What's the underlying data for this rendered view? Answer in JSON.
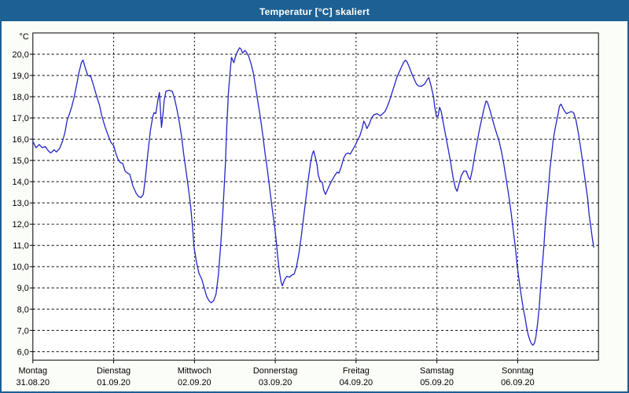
{
  "window": {
    "title": "Temperatur [°C] skaliert",
    "colors": {
      "titlebar_bg": "#1D6094",
      "titlebar_text": "#FFFFFF",
      "window_border": "#1D6094",
      "page_bg": "#FBFDF8",
      "plot_bg": "#FFFFFF",
      "grid": "#000000",
      "frame": "#000000",
      "line": "#2424C8",
      "label_text": "#000000"
    }
  },
  "chart_data": {
    "type": "line",
    "title": "Temperatur [°C] skaliert",
    "ylabel": "°C",
    "ylim": [
      5.6,
      21.0
    ],
    "grid": true,
    "legend_position": "none",
    "y_ticks": [
      {
        "value": 20,
        "label": "20,0"
      },
      {
        "value": 19,
        "label": "19,0"
      },
      {
        "value": 18,
        "label": "18,0"
      },
      {
        "value": 17,
        "label": "17,0"
      },
      {
        "value": 16,
        "label": "16,0"
      },
      {
        "value": 15,
        "label": "15,0"
      },
      {
        "value": 14,
        "label": "14,0"
      },
      {
        "value": 13,
        "label": "13,0"
      },
      {
        "value": 12,
        "label": "12,0"
      },
      {
        "value": 11,
        "label": "11,0"
      },
      {
        "value": 10,
        "label": "10,0"
      },
      {
        "value": 9,
        "label": "9,0"
      },
      {
        "value": 8,
        "label": "8,0"
      },
      {
        "value": 7,
        "label": "7,0"
      },
      {
        "value": 6,
        "label": "6,0"
      }
    ],
    "x_hours_range": [
      0,
      168
    ],
    "x_days": [
      {
        "label": "Montag",
        "date": "31.08.20"
      },
      {
        "label": "Dienstag",
        "date": "01.09.20"
      },
      {
        "label": "Mittwoch",
        "date": "02.09.20"
      },
      {
        "label": "Donnerstag",
        "date": "03.09.20"
      },
      {
        "label": "Freitag",
        "date": "04.09.20"
      },
      {
        "label": "Samstag",
        "date": "05.09.20"
      },
      {
        "label": "Sonntag",
        "date": "06.09.20"
      }
    ],
    "series": [
      {
        "name": "Temperatur [°C]",
        "unit": "°C",
        "points_hours_temp": [
          [
            0,
            15.9
          ],
          [
            0.9,
            15.6
          ],
          [
            1.9,
            15.75
          ],
          [
            2.8,
            15.6
          ],
          [
            3.7,
            15.65
          ],
          [
            4.6,
            15.45
          ],
          [
            5.3,
            15.35
          ],
          [
            6.3,
            15.5
          ],
          [
            7,
            15.4
          ],
          [
            7.9,
            15.55
          ],
          [
            8.8,
            15.9
          ],
          [
            9.5,
            16.3
          ],
          [
            10.2,
            16.9
          ],
          [
            10.9,
            17.2
          ],
          [
            11.6,
            17.55
          ],
          [
            12.3,
            18
          ],
          [
            13,
            18.55
          ],
          [
            13.7,
            19.15
          ],
          [
            14.4,
            19.6
          ],
          [
            14.9,
            19.73
          ],
          [
            15.6,
            19.35
          ],
          [
            16.3,
            19
          ],
          [
            17.2,
            18.95
          ],
          [
            17.9,
            18.6
          ],
          [
            18.8,
            18.1
          ],
          [
            19.8,
            17.6
          ],
          [
            20.4,
            17.15
          ],
          [
            21.4,
            16.6
          ],
          [
            22.3,
            16.2
          ],
          [
            23.2,
            15.85
          ],
          [
            24,
            15.7
          ],
          [
            24.6,
            15.35
          ],
          [
            25.3,
            15.05
          ],
          [
            26,
            14.9
          ],
          [
            26.7,
            14.85
          ],
          [
            27.4,
            14.5
          ],
          [
            28.1,
            14.4
          ],
          [
            28.8,
            14.35
          ],
          [
            29.7,
            13.8
          ],
          [
            30.7,
            13.45
          ],
          [
            31.4,
            13.3
          ],
          [
            32.1,
            13.25
          ],
          [
            32.8,
            13.4
          ],
          [
            33.5,
            14.3
          ],
          [
            34.2,
            15.4
          ],
          [
            34.9,
            16.4
          ],
          [
            35.6,
            17.05
          ],
          [
            36,
            17.25
          ],
          [
            36.5,
            17.2
          ],
          [
            37.2,
            17.9
          ],
          [
            37.6,
            18.2
          ],
          [
            38.2,
            16.55
          ],
          [
            38.6,
            17.1
          ],
          [
            39,
            17.8
          ],
          [
            39.5,
            18.25
          ],
          [
            40.4,
            18.3
          ],
          [
            41.4,
            18.25
          ],
          [
            42.1,
            17.9
          ],
          [
            42.8,
            17.4
          ],
          [
            43.5,
            16.8
          ],
          [
            44.2,
            16.1
          ],
          [
            44.8,
            15.3
          ],
          [
            45.5,
            14.5
          ],
          [
            46.2,
            13.7
          ],
          [
            46.9,
            12.8
          ],
          [
            47.4,
            11.9
          ],
          [
            47.9,
            10.9
          ],
          [
            48.6,
            10.2
          ],
          [
            49.3,
            9.7
          ],
          [
            50.2,
            9.4
          ],
          [
            50.9,
            9
          ],
          [
            51.6,
            8.6
          ],
          [
            52.3,
            8.4
          ],
          [
            53,
            8.3
          ],
          [
            53.7,
            8.4
          ],
          [
            54.4,
            8.7
          ],
          [
            55.1,
            9.6
          ],
          [
            55.8,
            11
          ],
          [
            56.5,
            12.8
          ],
          [
            57.2,
            14.9
          ],
          [
            57.6,
            16.6
          ],
          [
            58.1,
            18.2
          ],
          [
            58.6,
            19.2
          ],
          [
            59,
            19.85
          ],
          [
            59.7,
            19.6
          ],
          [
            60.2,
            19.9
          ],
          [
            60.7,
            20.1
          ],
          [
            61.4,
            20.3
          ],
          [
            61.8,
            20.25
          ],
          [
            62.3,
            20.05
          ],
          [
            63,
            20.18
          ],
          [
            63.4,
            20.1
          ],
          [
            64.1,
            19.9
          ],
          [
            64.8,
            19.55
          ],
          [
            65.5,
            19.1
          ],
          [
            66.2,
            18.4
          ],
          [
            66.9,
            17.7
          ],
          [
            67.6,
            17
          ],
          [
            68.3,
            16.2
          ],
          [
            69,
            15.3
          ],
          [
            69.7,
            14.5
          ],
          [
            70.4,
            13.6
          ],
          [
            71.1,
            12.7
          ],
          [
            71.8,
            11.9
          ],
          [
            72.3,
            11.2
          ],
          [
            72.7,
            10.5
          ],
          [
            73.2,
            9.8
          ],
          [
            73.7,
            9.3
          ],
          [
            74.1,
            9.1
          ],
          [
            74.8,
            9.4
          ],
          [
            75.5,
            9.55
          ],
          [
            76.2,
            9.5
          ],
          [
            76.9,
            9.6
          ],
          [
            77.6,
            9.65
          ],
          [
            78.3,
            10
          ],
          [
            79,
            10.6
          ],
          [
            79.7,
            11.4
          ],
          [
            80.4,
            12.3
          ],
          [
            81.1,
            13.2
          ],
          [
            81.8,
            14.1
          ],
          [
            82.5,
            14.9
          ],
          [
            83,
            15.3
          ],
          [
            83.4,
            15.45
          ],
          [
            83.9,
            15.15
          ],
          [
            84.4,
            14.8
          ],
          [
            84.8,
            14.3
          ],
          [
            85.3,
            14.05
          ],
          [
            86,
            13.95
          ],
          [
            86.4,
            13.6
          ],
          [
            86.9,
            13.4
          ],
          [
            87.6,
            13.65
          ],
          [
            88.3,
            13.9
          ],
          [
            89,
            14.1
          ],
          [
            89.7,
            14.3
          ],
          [
            90.4,
            14.45
          ],
          [
            90.9,
            14.4
          ],
          [
            91.6,
            14.7
          ],
          [
            92.3,
            15.1
          ],
          [
            93,
            15.3
          ],
          [
            93.6,
            15.35
          ],
          [
            94.3,
            15.3
          ],
          [
            95,
            15.5
          ],
          [
            95.7,
            15.7
          ],
          [
            96.4,
            15.95
          ],
          [
            97.1,
            16.15
          ],
          [
            97.8,
            16.5
          ],
          [
            98.3,
            16.85
          ],
          [
            98.8,
            16.7
          ],
          [
            99.2,
            16.5
          ],
          [
            99.9,
            16.7
          ],
          [
            100.6,
            17
          ],
          [
            101.3,
            17.15
          ],
          [
            102.2,
            17.2
          ],
          [
            103.2,
            17.1
          ],
          [
            103.9,
            17.2
          ],
          [
            104.6,
            17.3
          ],
          [
            105.3,
            17.55
          ],
          [
            106,
            17.85
          ],
          [
            106.7,
            18.2
          ],
          [
            107.4,
            18.55
          ],
          [
            108.1,
            18.9
          ],
          [
            108.8,
            19.15
          ],
          [
            109.5,
            19.4
          ],
          [
            110.1,
            19.6
          ],
          [
            110.6,
            19.72
          ],
          [
            111.1,
            19.65
          ],
          [
            111.8,
            19.4
          ],
          [
            112.5,
            19.1
          ],
          [
            113.2,
            18.85
          ],
          [
            113.9,
            18.6
          ],
          [
            114.6,
            18.5
          ],
          [
            115.5,
            18.5
          ],
          [
            116.4,
            18.6
          ],
          [
            117.1,
            18.8
          ],
          [
            117.6,
            18.9
          ],
          [
            118.3,
            18.5
          ],
          [
            119,
            18
          ],
          [
            119.4,
            17.5
          ],
          [
            119.9,
            17.05
          ],
          [
            120.4,
            17.1
          ],
          [
            120.8,
            17.5
          ],
          [
            121.3,
            17.3
          ],
          [
            122,
            16.7
          ],
          [
            122.7,
            16.1
          ],
          [
            123.4,
            15.5
          ],
          [
            124.1,
            14.9
          ],
          [
            124.8,
            14.2
          ],
          [
            125.5,
            13.7
          ],
          [
            126,
            13.55
          ],
          [
            126.6,
            13.9
          ],
          [
            127.3,
            14.3
          ],
          [
            128,
            14.5
          ],
          [
            128.7,
            14.5
          ],
          [
            129.4,
            14.2
          ],
          [
            129.9,
            14.1
          ],
          [
            130.6,
            14.6
          ],
          [
            131.3,
            15.3
          ],
          [
            132,
            15.9
          ],
          [
            132.7,
            16.5
          ],
          [
            133.4,
            17
          ],
          [
            134.1,
            17.5
          ],
          [
            134.6,
            17.8
          ],
          [
            135,
            17.75
          ],
          [
            135.7,
            17.4
          ],
          [
            136.4,
            17
          ],
          [
            137.1,
            16.6
          ],
          [
            137.8,
            16.25
          ],
          [
            138.5,
            15.9
          ],
          [
            139.2,
            15.4
          ],
          [
            139.9,
            14.8
          ],
          [
            140.6,
            14.1
          ],
          [
            141.3,
            13.4
          ],
          [
            142,
            12.6
          ],
          [
            142.7,
            11.7
          ],
          [
            143.4,
            10.8
          ],
          [
            143.8,
            10.1
          ],
          [
            144.3,
            9.5
          ],
          [
            145,
            8.7
          ],
          [
            145.7,
            8
          ],
          [
            146.2,
            7.6
          ],
          [
            146.6,
            7.2
          ],
          [
            147.1,
            6.8
          ],
          [
            147.6,
            6.55
          ],
          [
            148,
            6.4
          ],
          [
            148.5,
            6.3
          ],
          [
            149,
            6.4
          ],
          [
            149.4,
            6.7
          ],
          [
            149.9,
            7.3
          ],
          [
            150.4,
            8.1
          ],
          [
            150.8,
            9
          ],
          [
            151.3,
            10
          ],
          [
            151.8,
            11
          ],
          [
            152.2,
            12
          ],
          [
            152.7,
            12.9
          ],
          [
            153.2,
            13.8
          ],
          [
            153.6,
            14.6
          ],
          [
            154.1,
            15.3
          ],
          [
            154.5,
            15.9
          ],
          [
            155,
            16.4
          ],
          [
            155.5,
            16.8
          ],
          [
            156,
            17.2
          ],
          [
            156.4,
            17.55
          ],
          [
            156.9,
            17.65
          ],
          [
            157.3,
            17.5
          ],
          [
            157.8,
            17.35
          ],
          [
            158.5,
            17.2
          ],
          [
            159.2,
            17.25
          ],
          [
            159.9,
            17.3
          ],
          [
            160.6,
            17.25
          ],
          [
            161.3,
            16.9
          ],
          [
            162,
            16.3
          ],
          [
            162.7,
            15.6
          ],
          [
            163.4,
            14.8
          ],
          [
            164.1,
            14
          ],
          [
            164.8,
            13.2
          ],
          [
            165.2,
            12.5
          ],
          [
            165.7,
            11.9
          ],
          [
            166.2,
            11.3
          ],
          [
            166.6,
            10.9
          ]
        ]
      }
    ]
  }
}
